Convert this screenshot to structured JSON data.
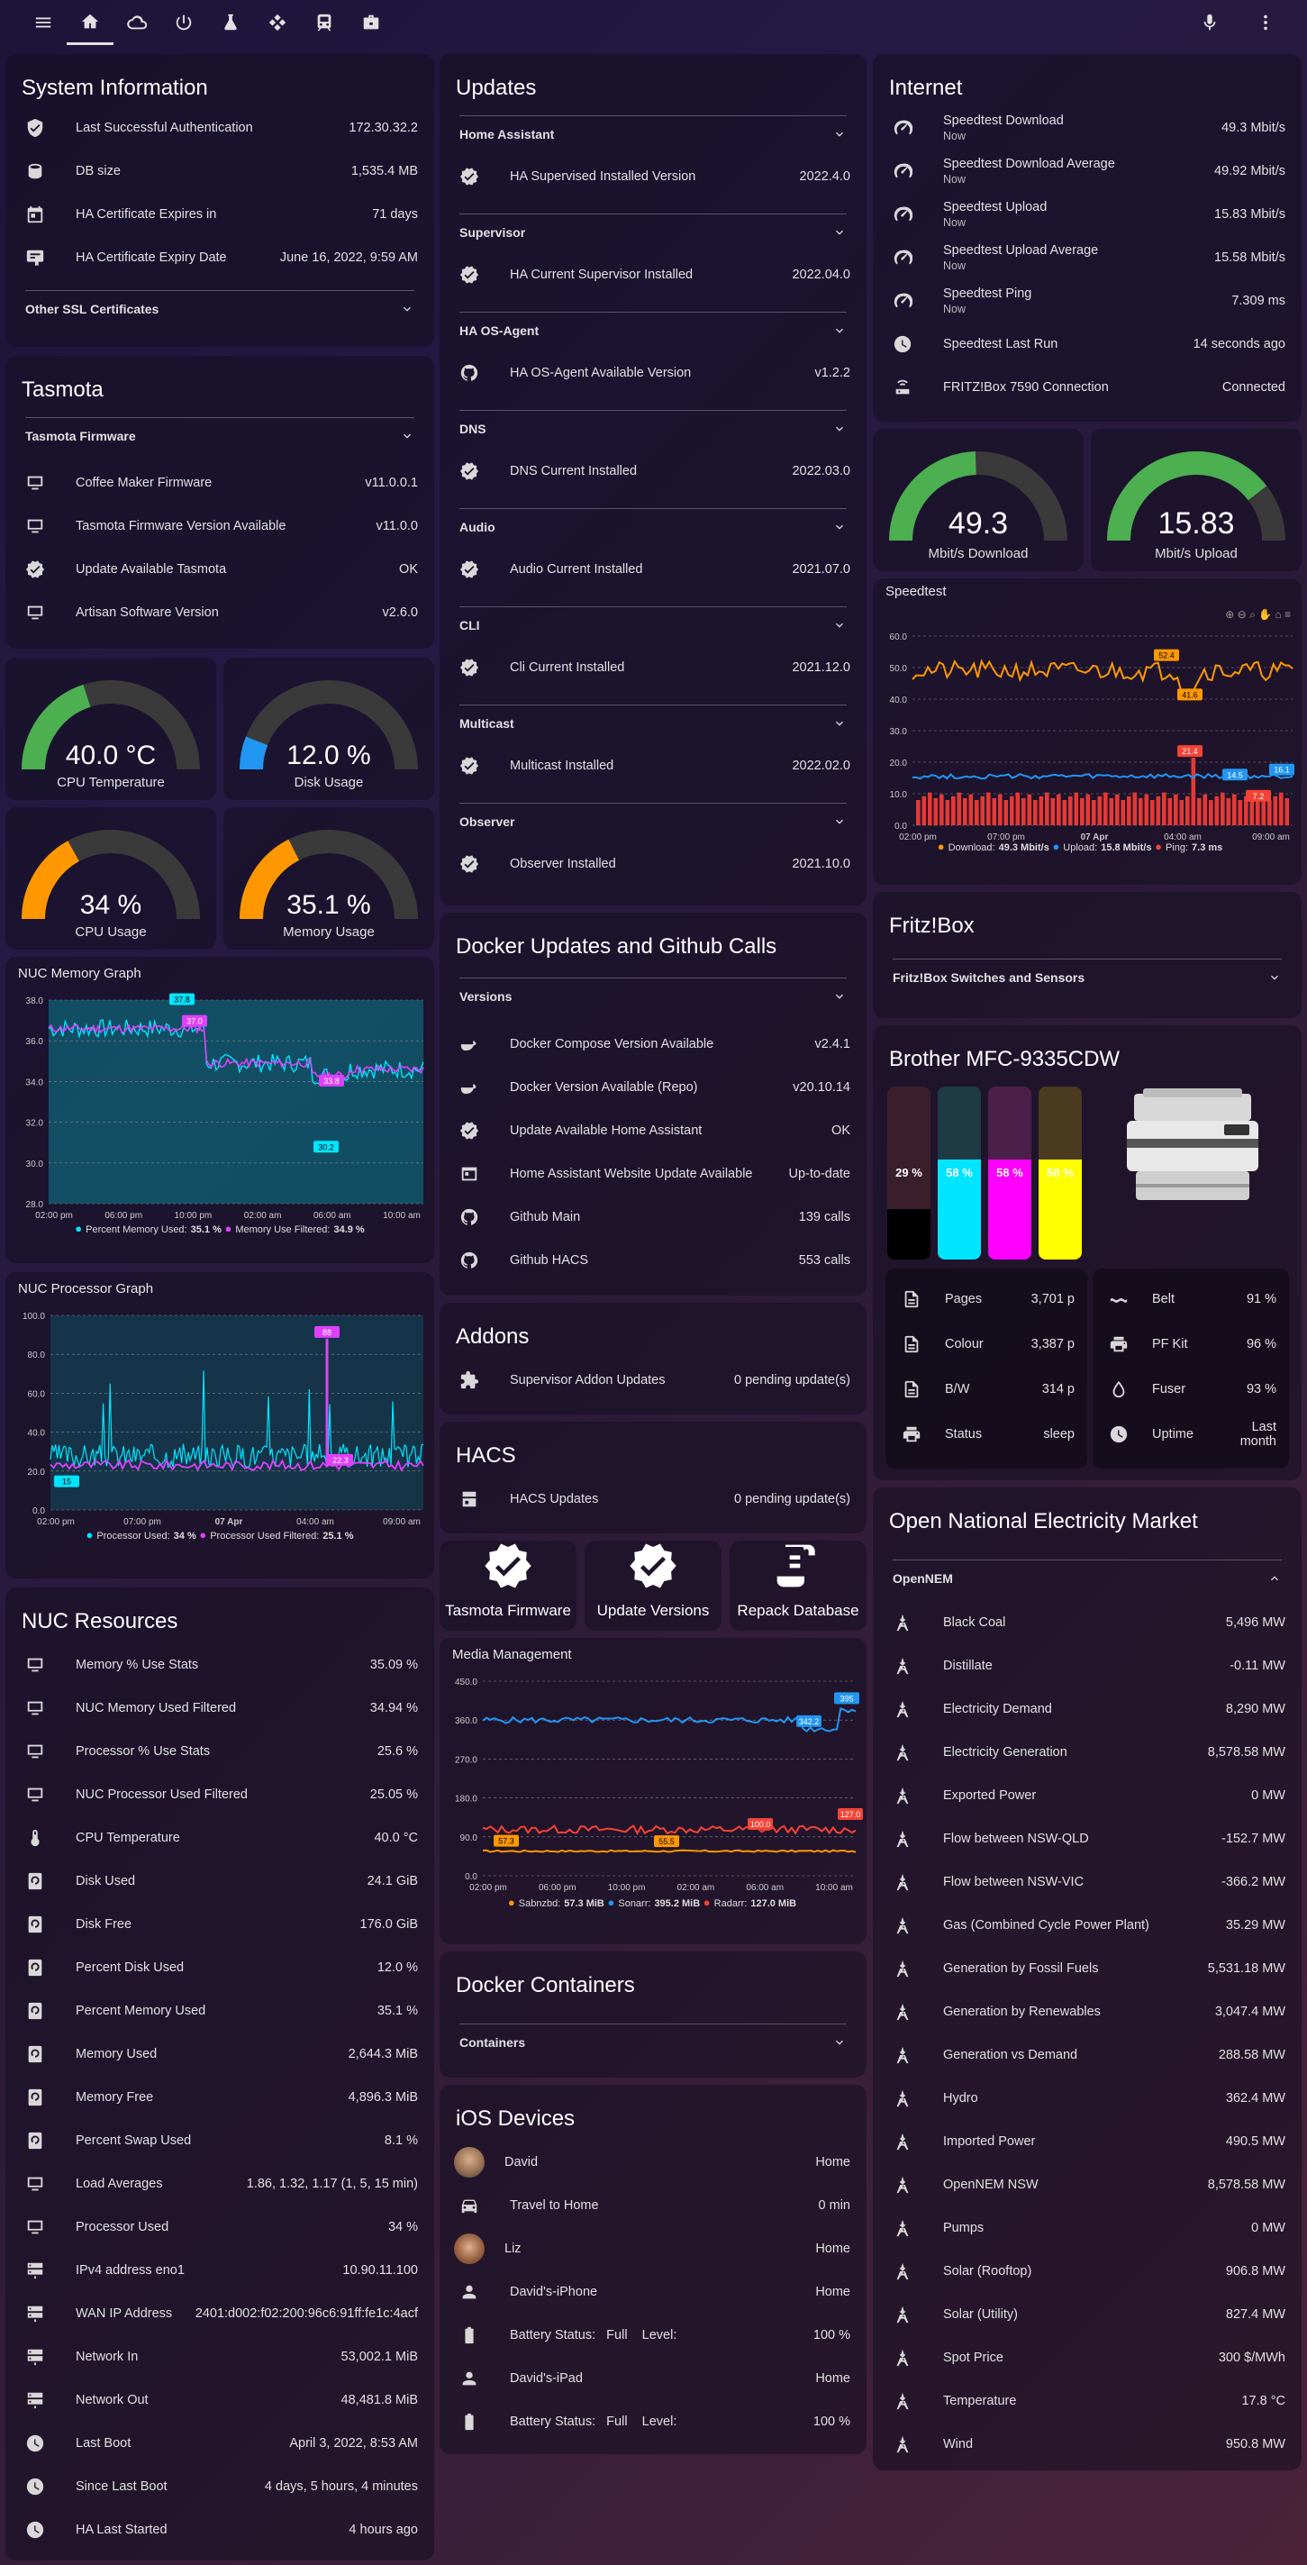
{
  "topbar": {
    "icons": [
      "menu-icon",
      "home-icon",
      "cloud-icon",
      "power-icon",
      "lab-icon",
      "network-icon",
      "tram-icon",
      "toolbox-icon"
    ],
    "right_icons": [
      "microphone-icon",
      "dots-vertical-icon"
    ]
  },
  "system": {
    "title": "System Information",
    "rows": [
      {
        "label": "Last Successful Authentication",
        "value": "172.30.32.2"
      },
      {
        "label": "DB size",
        "value": "1,535.4 MB"
      },
      {
        "label": "HA Certificate Expires in",
        "value": "71 days"
      },
      {
        "label": "HA Certificate Expiry Date",
        "value": "June 16, 2022, 9:59 AM"
      }
    ],
    "section": "Other SSL Certificates"
  },
  "tasmota": {
    "title": "Tasmota",
    "section": "Tasmota Firmware",
    "rows": [
      {
        "label": "Coffee Maker Firmware",
        "value": "v11.0.0.1"
      },
      {
        "label": "Tasmota Firmware Version Available",
        "value": "v11.0.0"
      },
      {
        "label": "Update Available Tasmota",
        "value": "OK"
      },
      {
        "label": "Artisan Software Version",
        "value": "v2.6.0"
      }
    ]
  },
  "gauges": [
    {
      "value": "40.0 °C",
      "label": "CPU Temperature",
      "fraction": 0.4,
      "color": "#4caf50"
    },
    {
      "value": "12.0 %",
      "label": "Disk Usage",
      "fraction": 0.12,
      "color": "#2196f3"
    },
    {
      "value": "34 %",
      "label": "CPU Usage",
      "fraction": 0.34,
      "color": "#ff9800"
    },
    {
      "value": "35.1 %",
      "label": "Memory Usage",
      "fraction": 0.351,
      "color": "#ff9800"
    }
  ],
  "mem_graph": {
    "title": "NUC Memory Graph",
    "y_ticks": [
      "38.0",
      "36.0",
      "34.0",
      "32.0",
      "30.0",
      "28.0"
    ],
    "x_ticks": [
      "02:00 pm",
      "06:00 pm",
      "10:00 pm",
      "02:00 am",
      "06:00 am",
      "10:00 am"
    ],
    "labels": [
      "37.8",
      "37.0",
      "33.8",
      "30.2"
    ],
    "legend": [
      {
        "name": "Percent Memory Used:",
        "value": "35.1 %",
        "color": "#00e5ff"
      },
      {
        "name": "Memory Use Filtered:",
        "value": "34.9 %",
        "color": "#e040fb"
      }
    ]
  },
  "proc_graph": {
    "title": "NUC Processor Graph",
    "y_ticks": [
      "100.0",
      "80.0",
      "60.0",
      "40.0",
      "20.0",
      "0.0"
    ],
    "x_ticks": [
      "02:00 pm",
      "07:00 pm",
      "07 Apr",
      "04:00 am",
      "09:00 am"
    ],
    "labels": [
      "88",
      "22.3",
      "15"
    ],
    "legend": [
      {
        "name": "Processor Used:",
        "value": "34 %",
        "color": "#00e5ff"
      },
      {
        "name": "Processor Used Filtered:",
        "value": "25.1 %",
        "color": "#e040fb"
      }
    ]
  },
  "resources": {
    "title": "NUC Resources",
    "rows": [
      {
        "label": "Memory % Use Stats",
        "value": "35.09 %"
      },
      {
        "label": "NUC Memory Used Filtered",
        "value": "34.94 %"
      },
      {
        "label": "Processor % Use Stats",
        "value": "25.6 %"
      },
      {
        "label": "NUC Processor Used Filtered",
        "value": "25.05 %"
      },
      {
        "label": "CPU Temperature",
        "value": "40.0 °C"
      },
      {
        "label": "Disk Used",
        "value": "24.1 GiB"
      },
      {
        "label": "Disk Free",
        "value": "176.0 GiB"
      },
      {
        "label": "Percent Disk Used",
        "value": "12.0 %"
      },
      {
        "label": "Percent Memory Used",
        "value": "35.1 %"
      },
      {
        "label": "Memory Used",
        "value": "2,644.3 MiB"
      },
      {
        "label": "Memory Free",
        "value": "4,896.3 MiB"
      },
      {
        "label": "Percent Swap Used",
        "value": "8.1 %"
      },
      {
        "label": "Load Averages",
        "value": "1.86, 1.32, 1.17 (1, 5, 15 min)"
      },
      {
        "label": "Processor Used",
        "value": "34 %"
      },
      {
        "label": "IPv4 address eno1",
        "value": "10.90.11.100"
      },
      {
        "label": "WAN IP Address",
        "value": "2401:d002:f02:200:96c6:91ff:fe1c:4acf"
      },
      {
        "label": "Network In",
        "value": "53,002.1 MiB"
      },
      {
        "label": "Network Out",
        "value": "48,481.8 MiB"
      },
      {
        "label": "Last Boot",
        "value": "April 3, 2022, 8:53 AM"
      },
      {
        "label": "Since Last Boot",
        "value": "4 days, 5 hours, 4 minutes"
      },
      {
        "label": "HA Last Started",
        "value": "4 hours ago"
      }
    ]
  },
  "updates": {
    "title": "Updates",
    "groups": [
      {
        "name": "Home Assistant",
        "label": "HA Supervised Installed Version",
        "value": "2022.4.0"
      },
      {
        "name": "Supervisor",
        "label": "HA Current Supervisor Installed",
        "value": "2022.04.0"
      },
      {
        "name": "HA OS-Agent",
        "label": "HA OS-Agent Available Version",
        "value": "v1.2.2"
      },
      {
        "name": "DNS",
        "label": "DNS Current Installed",
        "value": "2022.03.0"
      },
      {
        "name": "Audio",
        "label": "Audio Current Installed",
        "value": "2021.07.0"
      },
      {
        "name": "CLI",
        "label": "Cli Current Installed",
        "value": "2021.12.0"
      },
      {
        "name": "Multicast",
        "label": "Multicast Installed",
        "value": "2022.02.0"
      },
      {
        "name": "Observer",
        "label": "Observer Installed",
        "value": "2021.10.0"
      }
    ]
  },
  "docker_updates": {
    "title": "Docker Updates and Github Calls",
    "section": "Versions",
    "rows": [
      {
        "label": "Docker Compose Version Available",
        "value": "v2.4.1"
      },
      {
        "label": "Docker Version Available (Repo)",
        "value": "v20.10.14"
      },
      {
        "label": "Update Available Home Assistant",
        "value": "OK"
      },
      {
        "label": "Home Assistant Website Update Available",
        "value": "Up-to-date"
      },
      {
        "label": "Github Main",
        "value": "139 calls"
      },
      {
        "label": "Github HACS",
        "value": "553 calls"
      }
    ]
  },
  "addons": {
    "title": "Addons",
    "label": "Supervisor Addon Updates",
    "value": "0 pending update(s)"
  },
  "hacs": {
    "title": "HACS",
    "label": "HACS Updates",
    "value": "0 pending update(s)"
  },
  "buttons": [
    {
      "label": "Tasmota Firmware"
    },
    {
      "label": "Update Versions"
    },
    {
      "label": "Repack Database"
    }
  ],
  "media": {
    "title": "Media Management",
    "y_ticks": [
      "450.0",
      "360.0",
      "270.0",
      "180.0",
      "90.0",
      "0.0"
    ],
    "x_ticks": [
      "02:00 pm",
      "06:00 pm",
      "10:00 pm",
      "02:00 am",
      "06:00 am",
      "10:00 am"
    ],
    "labels": [
      "395",
      "342.2",
      "127.0",
      "100.0",
      "57.3",
      "55.5"
    ],
    "legend": [
      {
        "name": "Sabnzbd:",
        "value": "57.3 MiB",
        "color": "#ff9800"
      },
      {
        "name": "Sonarr:",
        "value": "395.2 MiB",
        "color": "#2196f3"
      },
      {
        "name": "Radarr:",
        "value": "127.0 MiB",
        "color": "#f44336"
      }
    ]
  },
  "containers": {
    "title": "Docker Containers",
    "section": "Containers"
  },
  "ios": {
    "title": "iOS Devices",
    "rows": [
      {
        "label": "David",
        "value": "Home"
      },
      {
        "label": "Travel to Home",
        "value": "0 min"
      },
      {
        "label": "Liz",
        "value": "Home"
      },
      {
        "label": "David's-iPhone",
        "value": "Home"
      },
      {
        "label": "Battery Status:   Full    Level:",
        "value": "100 %"
      },
      {
        "label": "David's-iPad",
        "value": "Home"
      },
      {
        "label": "Battery Status:   Full    Level:",
        "value": "100 %"
      }
    ]
  },
  "internet": {
    "title": "Internet",
    "rows": [
      {
        "label": "Speedtest Download",
        "sub": "Now",
        "value": "49.3 Mbit/s"
      },
      {
        "label": "Speedtest Download Average",
        "sub": "Now",
        "value": "49.92 Mbit/s"
      },
      {
        "label": "Speedtest Upload",
        "sub": "Now",
        "value": "15.83 Mbit/s"
      },
      {
        "label": "Speedtest Upload Average",
        "sub": "Now",
        "value": "15.58 Mbit/s"
      },
      {
        "label": "Speedtest Ping",
        "sub": "Now",
        "value": "7.309 ms"
      },
      {
        "label": "Speedtest Last Run",
        "value": "14 seconds ago"
      },
      {
        "label": "FRITZ!Box 7590 Connection",
        "value": "Connected"
      }
    ]
  },
  "speed_gauges": [
    {
      "value": "49.3",
      "label": "Mbit/s Download",
      "fraction": 0.49,
      "color": "#4caf50"
    },
    {
      "value": "15.83",
      "label": "Mbit/s Upload",
      "fraction": 0.79,
      "color": "#4caf50"
    }
  ],
  "speedtest": {
    "title": "Speedtest",
    "y_ticks": [
      "60.0",
      "50.0",
      "40.0",
      "30.0",
      "20.0",
      "10.0",
      "0.0"
    ],
    "x_ticks": [
      "02:00 pm",
      "07:00 pm",
      "07 Apr",
      "04:00 am",
      "09:00 am"
    ],
    "labels": [
      "52.4",
      "41.6",
      "21.4",
      "14.5",
      "16.1",
      "7.2"
    ],
    "legend": [
      {
        "name": "Download:",
        "value": "49.3 Mbit/s",
        "color": "#ff9800"
      },
      {
        "name": "Upload:",
        "value": "15.8 Mbit/s",
        "color": "#2196f3"
      },
      {
        "name": "Ping:",
        "value": "7.3 ms",
        "color": "#f44336"
      }
    ]
  },
  "fritz": {
    "title": "Fritz!Box",
    "section": "Fritz!Box Switches and Sensors"
  },
  "printer": {
    "title": "Brother MFC-9335CDW",
    "toners": [
      {
        "pct": "29 %",
        "fraction": 0.29,
        "color": "#000000",
        "bg": "#3a1f2a"
      },
      {
        "pct": "58 %",
        "fraction": 0.58,
        "color": "#00e5ff",
        "bg": "#1e3a45"
      },
      {
        "pct": "58 %",
        "fraction": 0.58,
        "color": "#ff00ff",
        "bg": "#4a1f4a"
      },
      {
        "pct": "58 %",
        "fraction": 0.58,
        "color": "#ffff00",
        "bg": "#4a3a1f"
      }
    ],
    "left": [
      {
        "label": "Pages",
        "value": "3,701 p"
      },
      {
        "label": "Colour",
        "value": "3,387 p"
      },
      {
        "label": "B/W",
        "value": "314 p"
      },
      {
        "label": "Status",
        "value": "sleep"
      }
    ],
    "right": [
      {
        "label": "Belt",
        "value": "91 %"
      },
      {
        "label": "PF Kit",
        "value": "96 %"
      },
      {
        "label": "Fuser",
        "value": "93 %"
      },
      {
        "label": "Uptime",
        "value": "Last month"
      }
    ]
  },
  "nem": {
    "title": "Open National Electricity Market",
    "section": "OpenNEM",
    "rows": [
      {
        "label": "Black Coal",
        "value": "5,496 MW"
      },
      {
        "label": "Distillate",
        "value": "-0.11 MW"
      },
      {
        "label": "Electricity Demand",
        "value": "8,290 MW"
      },
      {
        "label": "Electricity Generation",
        "value": "8,578.58 MW"
      },
      {
        "label": "Exported Power",
        "value": "0 MW"
      },
      {
        "label": "Flow between NSW-QLD",
        "value": "-152.7 MW"
      },
      {
        "label": "Flow between NSW-VIC",
        "value": "-366.2 MW"
      },
      {
        "label": "Gas (Combined Cycle Power Plant)",
        "value": "35.29 MW"
      },
      {
        "label": "Generation by Fossil Fuels",
        "value": "5,531.18 MW"
      },
      {
        "label": "Generation by Renewables",
        "value": "3,047.4 MW"
      },
      {
        "label": "Generation vs Demand",
        "value": "288.58 MW"
      },
      {
        "label": "Hydro",
        "value": "362.4 MW"
      },
      {
        "label": "Imported Power",
        "value": "490.5 MW"
      },
      {
        "label": "OpenNEM NSW",
        "value": "8,578.58 MW"
      },
      {
        "label": "Pumps",
        "value": "0 MW"
      },
      {
        "label": "Solar (Rooftop)",
        "value": "906.8 MW"
      },
      {
        "label": "Solar (Utility)",
        "value": "827.4 MW"
      },
      {
        "label": "Spot Price",
        "value": "300 $/MWh"
      },
      {
        "label": "Temperature",
        "value": "17.8 °C"
      },
      {
        "label": "Wind",
        "value": "950.8 MW"
      }
    ]
  }
}
